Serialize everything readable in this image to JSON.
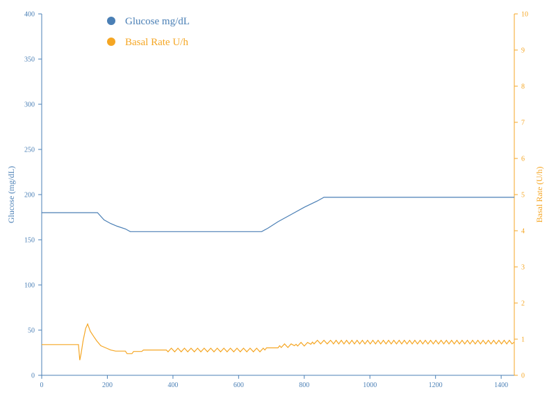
{
  "chart_data": {
    "type": "line",
    "xlabel": "",
    "xlim": [
      0,
      1440
    ],
    "x_ticks": [
      0,
      200,
      400,
      600,
      800,
      1000,
      1200,
      1400
    ],
    "grid": false,
    "legend_position": "top-left",
    "y_left": {
      "label": "Glucose (mg/dL)",
      "lim": [
        0,
        400
      ],
      "ticks": [
        0,
        50,
        100,
        150,
        200,
        250,
        300,
        350,
        400
      ],
      "color": "#4a7fb5"
    },
    "y_right": {
      "label": "Basal Rate (U/h)",
      "lim": [
        0,
        10
      ],
      "ticks": [
        0,
        1,
        2,
        3,
        4,
        5,
        6,
        7,
        8,
        9,
        10
      ],
      "color": "#f5a623"
    },
    "series": [
      {
        "name": "Glucose mg/dL",
        "axis": "left",
        "color": "#4a7fb5",
        "points": [
          [
            0,
            180
          ],
          [
            170,
            180
          ],
          [
            190,
            172
          ],
          [
            210,
            168
          ],
          [
            230,
            165
          ],
          [
            255,
            162
          ],
          [
            270,
            159
          ],
          [
            670,
            159
          ],
          [
            690,
            163
          ],
          [
            720,
            170
          ],
          [
            760,
            178
          ],
          [
            800,
            186
          ],
          [
            840,
            193
          ],
          [
            860,
            197
          ],
          [
            1440,
            197
          ]
        ]
      },
      {
        "name": "Basal Rate U/h",
        "axis": "right",
        "color": "#f5a623",
        "points": [
          [
            0,
            0.85
          ],
          [
            112,
            0.85
          ],
          [
            116,
            0.42
          ],
          [
            120,
            0.6
          ],
          [
            126,
            0.95
          ],
          [
            134,
            1.3
          ],
          [
            140,
            1.42
          ],
          [
            148,
            1.22
          ],
          [
            158,
            1.08
          ],
          [
            168,
            0.95
          ],
          [
            180,
            0.82
          ],
          [
            195,
            0.76
          ],
          [
            210,
            0.7
          ],
          [
            225,
            0.67
          ],
          [
            255,
            0.67
          ],
          [
            260,
            0.6
          ],
          [
            275,
            0.6
          ],
          [
            280,
            0.66
          ],
          [
            305,
            0.66
          ],
          [
            310,
            0.7
          ],
          [
            380,
            0.7
          ],
          [
            680,
            0.7
          ],
          [
            685,
            0.76
          ],
          [
            720,
            0.76
          ],
          [
            725,
            0.82
          ],
          [
            770,
            0.82
          ],
          [
            775,
            0.86
          ],
          [
            820,
            0.86
          ],
          [
            825,
            0.92
          ],
          [
            885,
            0.92
          ],
          [
            1440,
            0.92
          ]
        ]
      }
    ]
  }
}
